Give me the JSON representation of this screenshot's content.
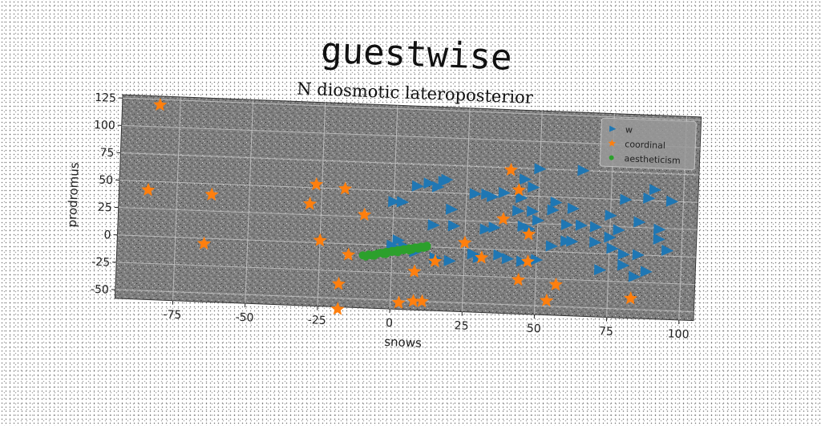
{
  "title": "guestwise",
  "chart_data": {
    "type": "scatter",
    "title": "N diosmotic lateroposterior",
    "xlabel": "snows",
    "ylabel": "prodromus",
    "xlim": [
      -95,
      105
    ],
    "ylim": [
      -58,
      128
    ],
    "xticks": [
      -75,
      -50,
      -25,
      0,
      25,
      50,
      75,
      100
    ],
    "yticks": [
      -50,
      -25,
      0,
      25,
      50,
      75,
      100,
      125
    ],
    "grid": true,
    "legend_position": "top-right",
    "series": [
      {
        "name": "w",
        "marker": "triangle-right",
        "color": "#1f77b4",
        "points": [
          [
            8,
            55
          ],
          [
            12,
            58
          ],
          [
            15,
            55
          ],
          [
            17,
            60
          ],
          [
            18,
            62
          ],
          [
            0,
            40
          ],
          [
            3,
            40
          ],
          [
            20,
            35
          ],
          [
            14,
            20
          ],
          [
            21,
            20
          ],
          [
            32,
            18
          ],
          [
            35,
            20
          ],
          [
            45,
            22
          ],
          [
            47,
            20
          ],
          [
            50,
            28
          ],
          [
            43,
            36
          ],
          [
            48,
            36
          ],
          [
            50,
            75
          ],
          [
            28,
            50
          ],
          [
            32,
            50
          ],
          [
            38,
            52
          ],
          [
            34,
            48
          ],
          [
            44,
            48
          ],
          [
            45,
            65
          ],
          [
            55,
            38
          ],
          [
            62,
            40
          ],
          [
            65,
            25
          ],
          [
            75,
            35
          ],
          [
            70,
            24
          ],
          [
            78,
            22
          ],
          [
            80,
            50
          ],
          [
            88,
            52
          ],
          [
            96,
            50
          ],
          [
            90,
            60
          ],
          [
            85,
            30
          ],
          [
            92,
            24
          ],
          [
            60,
            25
          ],
          [
            62,
            10
          ],
          [
            70,
            10
          ],
          [
            75,
            15
          ],
          [
            76,
            5
          ],
          [
            80,
            0
          ],
          [
            85,
            0
          ],
          [
            92,
            15
          ],
          [
            95,
            5
          ],
          [
            72,
            -15
          ],
          [
            80,
            -10
          ],
          [
            84,
            -20
          ],
          [
            88,
            -15
          ],
          [
            30,
            -8
          ],
          [
            40,
            -8
          ],
          [
            45,
            -10
          ],
          [
            50,
            -8
          ],
          [
            37,
            -5
          ],
          [
            15,
            -10
          ],
          [
            20,
            -12
          ],
          [
            28,
            -5
          ],
          [
            55,
            5
          ],
          [
            60,
            10
          ],
          [
            56,
            45
          ],
          [
            48,
            58
          ],
          [
            65,
            75
          ],
          [
            2,
            5
          ],
          [
            0,
            0
          ],
          [
            4,
            0
          ],
          [
            8,
            -5
          ]
        ]
      },
      {
        "name": "coordinal",
        "marker": "star",
        "color": "#ff7f0e",
        "points": [
          [
            -82,
            120
          ],
          [
            -85,
            42
          ],
          [
            -63,
            40
          ],
          [
            -65,
            -5
          ],
          [
            -27,
            53
          ],
          [
            -17,
            50
          ],
          [
            -29,
            35
          ],
          [
            -10,
            27
          ],
          [
            -25,
            2
          ],
          [
            -15,
            -10
          ],
          [
            -18,
            -37
          ],
          [
            -18,
            -60
          ],
          [
            3,
            -52
          ],
          [
            8,
            -50
          ],
          [
            11,
            -50
          ],
          [
            8,
            -23
          ],
          [
            15,
            -13
          ],
          [
            25,
            5
          ],
          [
            31,
            -8
          ],
          [
            38,
            28
          ],
          [
            40,
            73
          ],
          [
            43,
            55
          ],
          [
            47,
            15
          ],
          [
            47,
            -10
          ],
          [
            44,
            -27
          ],
          [
            57,
            -30
          ],
          [
            54,
            -45
          ],
          [
            83,
            -40
          ]
        ]
      },
      {
        "name": "aestheticism",
        "marker": "dot",
        "color": "#2ca02c",
        "points": [
          [
            -10,
            -10
          ],
          [
            -8,
            -9
          ],
          [
            -6,
            -9
          ],
          [
            -5,
            -8
          ],
          [
            -4,
            -7
          ],
          [
            -3,
            -8
          ],
          [
            -2,
            -6
          ],
          [
            -1,
            -6
          ],
          [
            0,
            -5
          ],
          [
            1,
            -5
          ],
          [
            2,
            -4
          ],
          [
            3,
            -4
          ],
          [
            4,
            -3
          ],
          [
            5,
            -3
          ],
          [
            6,
            -2
          ],
          [
            7,
            -2
          ],
          [
            8,
            -1
          ],
          [
            9,
            -1
          ],
          [
            10,
            0
          ],
          [
            11,
            0
          ],
          [
            12,
            1
          ],
          [
            -7,
            -10
          ],
          [
            -3,
            -7
          ],
          [
            0,
            -6
          ],
          [
            4,
            -4
          ],
          [
            7,
            -3
          ],
          [
            10,
            -1
          ],
          [
            12,
            0
          ],
          [
            -9,
            -11
          ],
          [
            -6,
            -10
          ],
          [
            -2,
            -8
          ],
          [
            2,
            -6
          ],
          [
            6,
            -4
          ],
          [
            9,
            -2
          ],
          [
            11,
            -1
          ]
        ]
      }
    ]
  }
}
